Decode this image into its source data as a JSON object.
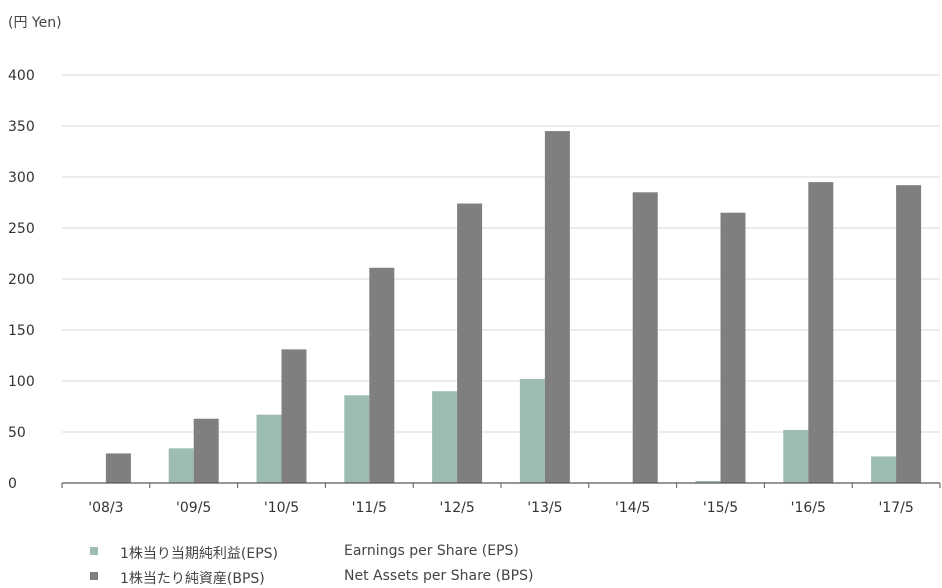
{
  "unit_label": "(円 Yen)",
  "legend": [
    {
      "jp": "1株当り当期純利益(EPS)",
      "en": "Earnings per Share (EPS)"
    },
    {
      "jp": "1株当たり純資産(BPS)",
      "en": "Net Assets per Share (BPS)"
    }
  ],
  "colors": {
    "eps": "#9dbcb2",
    "bps": "#7f7f7f",
    "grid": "#d9d9d9",
    "axis": "#595959"
  },
  "chart_data": {
    "type": "bar",
    "categories": [
      "'08/3",
      "'09/5",
      "'10/5",
      "'11/5",
      "'12/5",
      "'13/5",
      "'14/5",
      "'15/5",
      "'16/5",
      "'17/5"
    ],
    "series": [
      {
        "name": "1株当り当期純利益(EPS) Earnings per Share (EPS)",
        "values": [
          0,
          34,
          67,
          86,
          90,
          102,
          0,
          2,
          52,
          26
        ]
      },
      {
        "name": "1株当たり純資産(BPS) Net Assets per Share (BPS)",
        "values": [
          29,
          63,
          131,
          211,
          274,
          345,
          285,
          265,
          295,
          292
        ]
      }
    ],
    "ylim": [
      0,
      400
    ],
    "yticks": [
      0,
      50,
      100,
      150,
      200,
      250,
      300,
      350,
      400
    ],
    "grid": true,
    "legend_position": "bottom-left"
  }
}
